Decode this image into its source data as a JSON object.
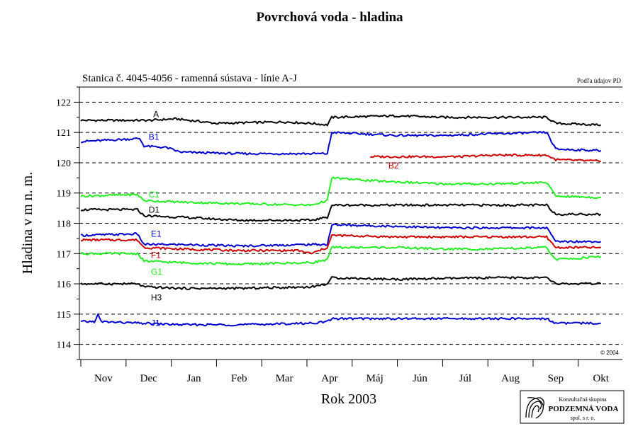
{
  "title": "Povrchová voda - hladina",
  "chart_data": {
    "type": "line",
    "subtitle": "Stanica č. 4045-4056 - ramenná sústava  - línie A-J",
    "source_note": "Podľa údajov PD",
    "ylabel": "Hladina v m n. m.",
    "xlabel": "Rok 2003",
    "ylim": [
      113.5,
      122.5
    ],
    "yticks": [
      114,
      115,
      116,
      117,
      118,
      119,
      120,
      121,
      122
    ],
    "grid": "dashed horizontal at each integer level",
    "x_domain": [
      "Oct 24",
      "Oct 15 next year"
    ],
    "x_categories": [
      "Nov",
      "Dec",
      "Jan",
      "Feb",
      "Mar",
      "Apr",
      "Máj",
      "Jún",
      "Júl",
      "Aug",
      "Sep",
      "Okt"
    ],
    "copyright": "© 2004",
    "series": [
      {
        "name": "A",
        "color": "#000000",
        "label_pos": [
          1.6,
          121.6
        ],
        "points": [
          [
            0,
            121.4
          ],
          [
            1.5,
            121.4
          ],
          [
            2.1,
            121.45
          ],
          [
            3,
            121.3
          ],
          [
            4.5,
            121.35
          ],
          [
            5.1,
            121.3
          ],
          [
            5.45,
            121.25
          ],
          [
            5.55,
            121.5
          ],
          [
            7,
            121.55
          ],
          [
            8,
            121.5
          ],
          [
            9.1,
            121.5
          ],
          [
            10.3,
            121.5
          ],
          [
            10.5,
            121.3
          ],
          [
            11.5,
            121.25
          ]
        ]
      },
      {
        "name": "B1",
        "color": "#0000cc",
        "label_pos": [
          1.5,
          120.85
        ],
        "points": [
          [
            0,
            120.7
          ],
          [
            1.3,
            120.8
          ],
          [
            1.4,
            120.55
          ],
          [
            1.9,
            120.5
          ],
          [
            2.2,
            120.35
          ],
          [
            3.5,
            120.3
          ],
          [
            5.1,
            120.3
          ],
          [
            5.45,
            120.3
          ],
          [
            5.55,
            121.0
          ],
          [
            7,
            120.9
          ],
          [
            8,
            120.9
          ],
          [
            9,
            120.95
          ],
          [
            10.3,
            121.0
          ],
          [
            10.5,
            120.45
          ],
          [
            11.5,
            120.4
          ]
        ]
      },
      {
        "name": "B2",
        "color": "#cc0000",
        "label_pos": [
          6.8,
          119.9
        ],
        "points": [
          [
            6.4,
            120.2
          ],
          [
            7.5,
            120.2
          ],
          [
            8.4,
            120.2
          ],
          [
            9.1,
            120.25
          ],
          [
            10.3,
            120.25
          ],
          [
            10.5,
            120.1
          ],
          [
            11.5,
            120.05
          ]
        ]
      },
      {
        "name": "C1",
        "color": "#22ee22",
        "label_pos": [
          1.5,
          118.95
        ],
        "points": [
          [
            0,
            118.9
          ],
          [
            1.25,
            118.95
          ],
          [
            1.4,
            118.75
          ],
          [
            2.2,
            118.7
          ],
          [
            3.5,
            118.65
          ],
          [
            5.1,
            118.6
          ],
          [
            5.45,
            118.75
          ],
          [
            5.55,
            119.5
          ],
          [
            6.5,
            119.4
          ],
          [
            8,
            119.3
          ],
          [
            9.1,
            119.3
          ],
          [
            10.3,
            119.35
          ],
          [
            10.5,
            118.9
          ],
          [
            11.5,
            118.85
          ]
        ]
      },
      {
        "name": "D1",
        "color": "#000000",
        "label_pos": [
          1.5,
          118.45
        ],
        "points": [
          [
            0,
            118.45
          ],
          [
            1.25,
            118.45
          ],
          [
            1.4,
            118.25
          ],
          [
            2.2,
            118.2
          ],
          [
            3.5,
            118.1
          ],
          [
            5.1,
            118.1
          ],
          [
            5.45,
            118.2
          ],
          [
            5.55,
            118.6
          ],
          [
            7,
            118.6
          ],
          [
            9.1,
            118.6
          ],
          [
            10.3,
            118.6
          ],
          [
            10.5,
            118.3
          ],
          [
            11.5,
            118.3
          ]
        ]
      },
      {
        "name": "E1",
        "color": "#0000cc",
        "label_pos": [
          1.55,
          117.65
        ],
        "points": [
          [
            0,
            117.6
          ],
          [
            1.25,
            117.65
          ],
          [
            1.4,
            117.3
          ],
          [
            2.2,
            117.3
          ],
          [
            3.5,
            117.25
          ],
          [
            5.1,
            117.3
          ],
          [
            5.45,
            117.3
          ],
          [
            5.55,
            117.95
          ],
          [
            7,
            117.9
          ],
          [
            8,
            117.85
          ],
          [
            9.1,
            117.85
          ],
          [
            10.3,
            117.85
          ],
          [
            10.5,
            117.4
          ],
          [
            11.5,
            117.4
          ]
        ]
      },
      {
        "name": "F1",
        "color": "#cc0000",
        "label_pos": [
          1.55,
          116.95
        ],
        "points": [
          [
            0,
            117.45
          ],
          [
            1.25,
            117.45
          ],
          [
            1.4,
            117.2
          ],
          [
            2.2,
            117.15
          ],
          [
            3.5,
            117.1
          ],
          [
            4.8,
            117.1
          ],
          [
            5.1,
            117.0
          ],
          [
            5.45,
            117.2
          ],
          [
            5.55,
            117.6
          ],
          [
            7,
            117.55
          ],
          [
            9.1,
            117.55
          ],
          [
            10.3,
            117.55
          ],
          [
            10.5,
            117.2
          ],
          [
            11.5,
            117.2
          ]
        ]
      },
      {
        "name": "G1",
        "color": "#22ee22",
        "label_pos": [
          1.55,
          116.4
        ],
        "points": [
          [
            0,
            117.0
          ],
          [
            1.25,
            117.0
          ],
          [
            1.4,
            116.75
          ],
          [
            2.2,
            116.7
          ],
          [
            3.5,
            116.65
          ],
          [
            5.1,
            116.7
          ],
          [
            5.45,
            116.8
          ],
          [
            5.55,
            117.2
          ],
          [
            7,
            117.2
          ],
          [
            8,
            117.15
          ],
          [
            9.1,
            117.15
          ],
          [
            10.3,
            117.2
          ],
          [
            10.5,
            116.8
          ],
          [
            11.5,
            116.9
          ]
        ]
      },
      {
        "name": "H3",
        "color": "#000000",
        "label_pos": [
          1.55,
          115.55
        ],
        "points": [
          [
            0,
            116.0
          ],
          [
            1.25,
            116.0
          ],
          [
            1.4,
            115.9
          ],
          [
            2.2,
            115.85
          ],
          [
            3.5,
            115.85
          ],
          [
            5.1,
            115.9
          ],
          [
            5.45,
            116.0
          ],
          [
            5.55,
            116.2
          ],
          [
            7,
            116.15
          ],
          [
            9.1,
            116.2
          ],
          [
            10.3,
            116.2
          ],
          [
            10.5,
            116.0
          ],
          [
            11.5,
            116.0
          ]
        ]
      },
      {
        "name": "J1",
        "color": "#0000cc",
        "label_pos": [
          1.55,
          114.7
        ],
        "points": [
          [
            0,
            114.75
          ],
          [
            0.3,
            114.75
          ],
          [
            0.38,
            114.98
          ],
          [
            0.45,
            114.75
          ],
          [
            1.3,
            114.7
          ],
          [
            2.2,
            114.65
          ],
          [
            3.5,
            114.65
          ],
          [
            5.1,
            114.7
          ],
          [
            5.45,
            114.75
          ],
          [
            5.55,
            114.85
          ],
          [
            7,
            114.85
          ],
          [
            9.1,
            114.85
          ],
          [
            10.3,
            114.85
          ],
          [
            10.5,
            114.7
          ],
          [
            11.5,
            114.7
          ]
        ]
      }
    ]
  },
  "logo": {
    "line1": "Konzultačná skupina",
    "line2": "PODZEMNÁ VODA",
    "line3": "spol. s r. o."
  }
}
